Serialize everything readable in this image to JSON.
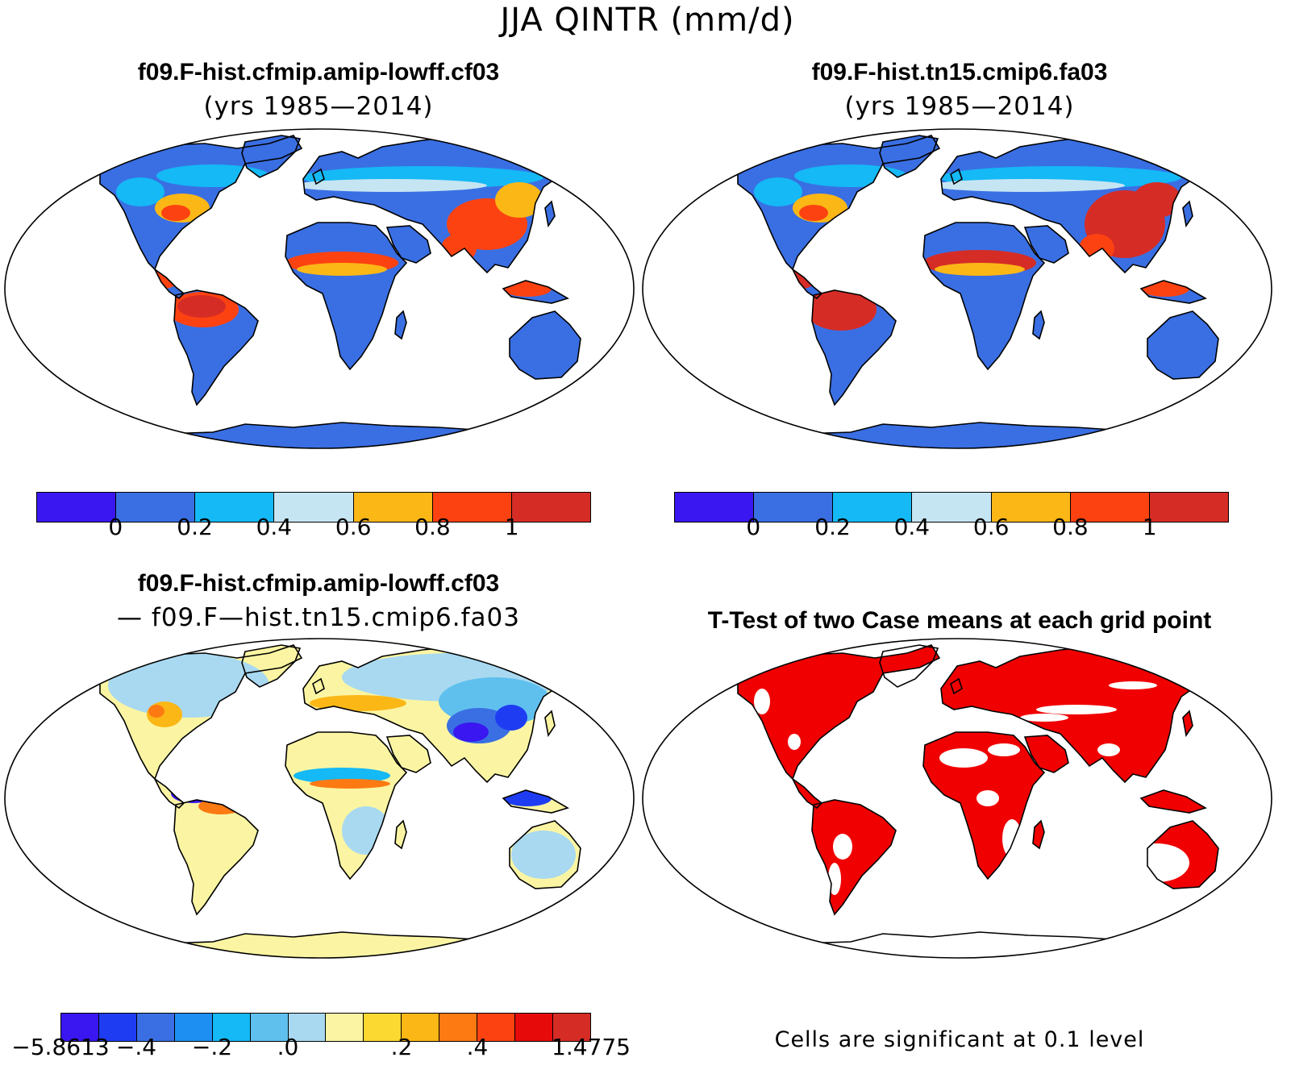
{
  "main_title": "JJA QINTR (mm/d)",
  "panels": [
    {
      "title": "f09.F-hist.cfmip.amip-lowff.cf03",
      "subtitle": "(yrs 1985—2014)"
    },
    {
      "title": "f09.F-hist.tn15.cmip6.fa03",
      "subtitle": "(yrs 1985—2014)"
    },
    {
      "title": "f09.F-hist.cfmip.amip-lowff.cf03",
      "subtitle": "— f09.F—hist.tn15.cmip6.fa03"
    },
    {
      "title": "T-Test of two Case means at each grid point",
      "subtitle": ""
    }
  ],
  "colorbars": {
    "abs": {
      "colors": [
        "#3a17f0",
        "#3a6fe3",
        "#14b9f5",
        "#c6e5f3",
        "#fbb716",
        "#fd4211",
        "#d62c26"
      ],
      "ticks": [
        "0",
        "0.2",
        "0.4",
        "0.6",
        "0.8",
        "1"
      ]
    },
    "diff": {
      "colors": [
        "#3a17f0",
        "#1e3df2",
        "#3a6fe3",
        "#1e8ff2",
        "#14b9f5",
        "#5fc0ee",
        "#a9d9f0",
        "#fbf5a3",
        "#fcd930",
        "#fbb716",
        "#fd7a12",
        "#fd4211",
        "#e60a0a",
        "#d62c26"
      ],
      "ticks": [
        "−5.8613",
        "−.4",
        "−.2",
        ".0",
        ".2",
        ".4",
        "1.4775"
      ]
    }
  },
  "significance_note": "Cells are significant at 0.1 level",
  "map_colors": {
    "land_base": "#3a6fe3",
    "ttest_significant": "#f00000"
  }
}
